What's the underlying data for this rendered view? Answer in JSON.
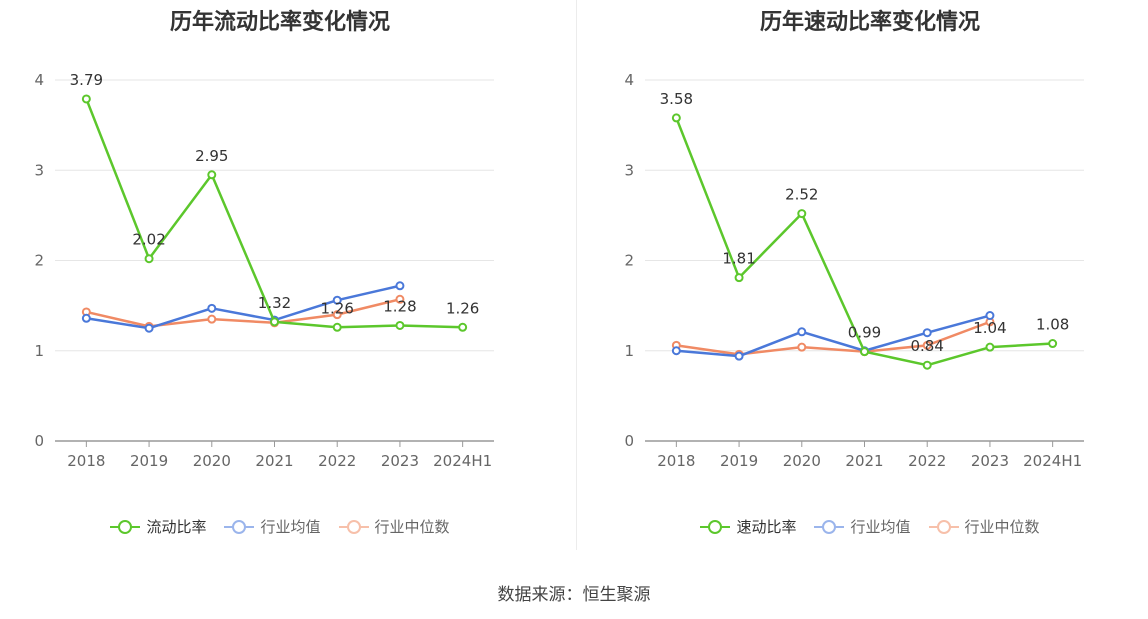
{
  "colors": {
    "company": "#5cc72c",
    "industry_avg": "#4a78d9",
    "industry_median": "#f08a64"
  },
  "source": "数据来源：恒生聚源",
  "chart_data": [
    {
      "type": "line",
      "title": "历年流动比率变化情况",
      "categories": [
        "2018",
        "2019",
        "2020",
        "2021",
        "2022",
        "2023",
        "2024H1"
      ],
      "ylim": [
        0,
        4
      ],
      "yticks": [
        "0",
        "1",
        "2",
        "3",
        "4"
      ],
      "grid": true,
      "legend": "bottom",
      "series": [
        {
          "name": "流动比率",
          "values": [
            3.79,
            2.02,
            2.95,
            1.32,
            1.26,
            1.28,
            1.26
          ],
          "labels": [
            "3.79",
            "2.02",
            "2.95",
            "1.32",
            "1.26",
            "1.28",
            "1.26"
          ]
        },
        {
          "name": "行业均值",
          "values": [
            1.36,
            1.25,
            1.47,
            1.34,
            1.56,
            1.72,
            null
          ]
        },
        {
          "name": "行业中位数",
          "values": [
            1.43,
            1.27,
            1.35,
            1.31,
            1.4,
            1.57,
            null
          ]
        }
      ]
    },
    {
      "type": "line",
      "title": "历年速动比率变化情况",
      "categories": [
        "2018",
        "2019",
        "2020",
        "2021",
        "2022",
        "2023",
        "2024H1"
      ],
      "ylim": [
        0,
        4
      ],
      "yticks": [
        "0",
        "1",
        "2",
        "3",
        "4"
      ],
      "grid": true,
      "legend": "bottom",
      "series": [
        {
          "name": "速动比率",
          "values": [
            3.58,
            1.81,
            2.52,
            0.99,
            0.84,
            1.04,
            1.08
          ],
          "labels": [
            "3.58",
            "1.81",
            "2.52",
            "0.99",
            "0.84",
            "1.04",
            "1.08"
          ]
        },
        {
          "name": "行业均值",
          "values": [
            1.0,
            0.94,
            1.21,
            1.0,
            1.2,
            1.39,
            null
          ]
        },
        {
          "name": "行业中位数",
          "values": [
            1.06,
            0.96,
            1.04,
            0.99,
            1.06,
            1.32,
            null
          ]
        }
      ]
    }
  ]
}
